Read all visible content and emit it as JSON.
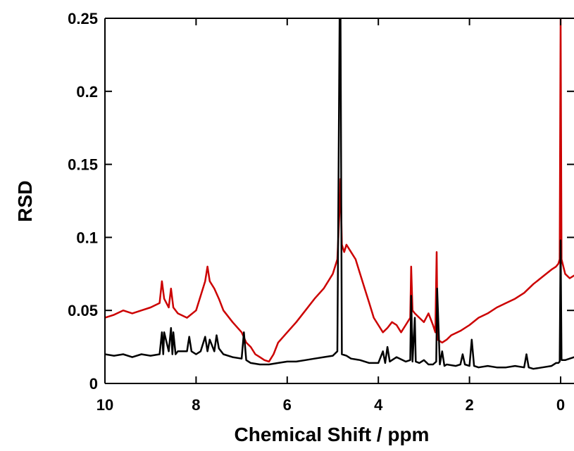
{
  "chart_data": {
    "type": "line",
    "title": "",
    "xlabel": "Chemical Shift / ppm",
    "ylabel": "RSD",
    "xlim": [
      10,
      0
    ],
    "ylim": [
      0,
      0.25
    ],
    "x_reversed": true,
    "x_ticks": [
      10,
      8,
      6,
      4,
      2,
      0
    ],
    "x_tick_labels": [
      "10",
      "8",
      "6",
      "4",
      "2",
      "0"
    ],
    "y_ticks": [
      0,
      0.05,
      0.1,
      0.15,
      0.2,
      0.25
    ],
    "y_tick_labels": [
      "0",
      "0.05",
      "0.1",
      "0.15",
      "0.2",
      "0.25"
    ],
    "grid": false,
    "legend": "none",
    "series": [
      {
        "color": "#cc0000",
        "x": [
          10,
          9.8,
          9.6,
          9.4,
          9.2,
          9.0,
          8.8,
          8.75,
          8.7,
          8.6,
          8.55,
          8.5,
          8.4,
          8.2,
          8.0,
          7.9,
          7.8,
          7.75,
          7.7,
          7.6,
          7.5,
          7.4,
          7.2,
          7.0,
          6.9,
          6.8,
          6.7,
          6.6,
          6.5,
          6.4,
          6.3,
          6.2,
          6.0,
          5.8,
          5.6,
          5.4,
          5.2,
          5.0,
          4.9,
          4.85,
          4.83,
          4.8,
          4.75,
          4.7,
          4.6,
          4.5,
          4.4,
          4.3,
          4.2,
          4.1,
          4.0,
          3.9,
          3.8,
          3.7,
          3.6,
          3.5,
          3.4,
          3.3,
          3.28,
          3.25,
          3.2,
          3.1,
          3.0,
          2.9,
          2.8,
          2.75,
          2.72,
          2.7,
          2.6,
          2.5,
          2.4,
          2.2,
          2.0,
          1.8,
          1.6,
          1.4,
          1.2,
          1.0,
          0.8,
          0.6,
          0.4,
          0.2,
          0.1,
          0.05,
          0.02,
          0.0,
          -0.02,
          -0.1,
          -0.2,
          -0.3
        ],
        "y": [
          0.045,
          0.047,
          0.05,
          0.048,
          0.05,
          0.052,
          0.055,
          0.07,
          0.058,
          0.052,
          0.065,
          0.052,
          0.048,
          0.045,
          0.05,
          0.06,
          0.07,
          0.08,
          0.07,
          0.065,
          0.058,
          0.05,
          0.042,
          0.035,
          0.028,
          0.025,
          0.02,
          0.018,
          0.016,
          0.015,
          0.02,
          0.028,
          0.035,
          0.042,
          0.05,
          0.058,
          0.065,
          0.075,
          0.085,
          0.12,
          0.14,
          0.095,
          0.09,
          0.095,
          0.09,
          0.085,
          0.075,
          0.065,
          0.055,
          0.045,
          0.04,
          0.035,
          0.038,
          0.042,
          0.04,
          0.035,
          0.04,
          0.045,
          0.08,
          0.05,
          0.048,
          0.045,
          0.042,
          0.048,
          0.04,
          0.035,
          0.09,
          0.03,
          0.028,
          0.03,
          0.033,
          0.036,
          0.04,
          0.045,
          0.048,
          0.052,
          0.055,
          0.058,
          0.062,
          0.068,
          0.073,
          0.078,
          0.08,
          0.082,
          0.085,
          0.25,
          0.085,
          0.075,
          0.072,
          0.074
        ]
      },
      {
        "color": "#000000",
        "x": [
          10,
          9.8,
          9.6,
          9.4,
          9.2,
          9.0,
          8.8,
          8.75,
          8.72,
          8.7,
          8.6,
          8.55,
          8.52,
          8.5,
          8.45,
          8.4,
          8.2,
          8.15,
          8.1,
          8.0,
          7.9,
          7.8,
          7.75,
          7.7,
          7.6,
          7.55,
          7.5,
          7.4,
          7.2,
          7.0,
          6.95,
          6.9,
          6.8,
          6.6,
          6.4,
          6.2,
          6.0,
          5.8,
          5.6,
          5.4,
          5.2,
          5.0,
          4.9,
          4.85,
          4.83,
          4.8,
          4.7,
          4.6,
          4.4,
          4.2,
          4.0,
          3.9,
          3.85,
          3.8,
          3.75,
          3.7,
          3.6,
          3.4,
          3.3,
          3.28,
          3.25,
          3.2,
          3.18,
          3.1,
          3.0,
          2.9,
          2.8,
          2.73,
          2.71,
          2.65,
          2.6,
          2.55,
          2.5,
          2.3,
          2.2,
          2.15,
          2.1,
          2.0,
          1.95,
          1.9,
          1.8,
          1.6,
          1.4,
          1.2,
          1.0,
          0.8,
          0.75,
          0.7,
          0.6,
          0.4,
          0.2,
          0.1,
          0.05,
          0.02,
          0.0,
          -0.02,
          -0.1,
          -0.2,
          -0.3
        ],
        "y": [
          0.02,
          0.019,
          0.02,
          0.018,
          0.02,
          0.019,
          0.02,
          0.035,
          0.02,
          0.035,
          0.022,
          0.038,
          0.02,
          0.035,
          0.02,
          0.022,
          0.022,
          0.032,
          0.022,
          0.02,
          0.022,
          0.032,
          0.022,
          0.03,
          0.022,
          0.033,
          0.024,
          0.02,
          0.018,
          0.017,
          0.035,
          0.016,
          0.014,
          0.013,
          0.013,
          0.014,
          0.015,
          0.015,
          0.016,
          0.017,
          0.018,
          0.019,
          0.022,
          0.25,
          0.25,
          0.02,
          0.019,
          0.017,
          0.016,
          0.014,
          0.014,
          0.022,
          0.014,
          0.025,
          0.015,
          0.016,
          0.018,
          0.015,
          0.016,
          0.06,
          0.015,
          0.045,
          0.015,
          0.014,
          0.016,
          0.013,
          0.013,
          0.015,
          0.065,
          0.013,
          0.022,
          0.012,
          0.013,
          0.012,
          0.013,
          0.02,
          0.013,
          0.012,
          0.03,
          0.012,
          0.011,
          0.012,
          0.011,
          0.011,
          0.012,
          0.011,
          0.02,
          0.011,
          0.01,
          0.011,
          0.012,
          0.014,
          0.014,
          0.015,
          0.098,
          0.016,
          0.016,
          0.017,
          0.018
        ]
      }
    ]
  }
}
